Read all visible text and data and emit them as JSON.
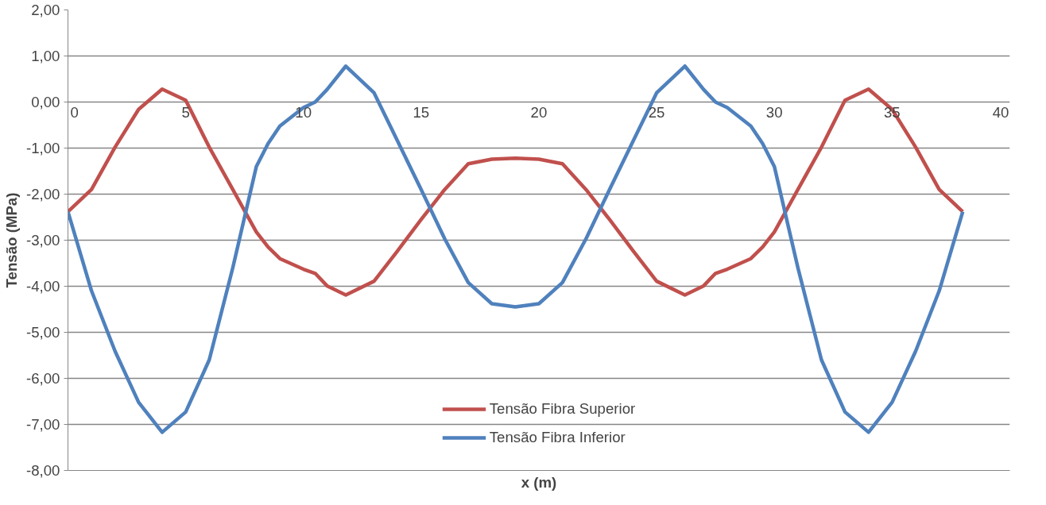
{
  "chart_data": {
    "type": "line",
    "xlabel": "x (m)",
    "ylabel": "Tensão (MPa)",
    "x": [
      0,
      1,
      2,
      3,
      4,
      5,
      6,
      7,
      8,
      8.5,
      9,
      10,
      10.5,
      11,
      11.8,
      13,
      14,
      15,
      16,
      17,
      18,
      19,
      20,
      21,
      22,
      23,
      24,
      25,
      26.2,
      27,
      27.5,
      28,
      29,
      29.5,
      30,
      31,
      32,
      33,
      34,
      35,
      36,
      37,
      38
    ],
    "series": [
      {
        "name": "Tensão Fibra Superior",
        "color": "#c0504d",
        "values": [
          -2.38,
          -1.9,
          -0.98,
          -0.16,
          0.28,
          0.04,
          -0.98,
          -1.9,
          -2.82,
          -3.15,
          -3.4,
          -3.63,
          -3.72,
          -3.99,
          -4.19,
          -3.89,
          -3.23,
          -2.55,
          -1.9,
          -1.34,
          -1.24,
          -1.22,
          -1.24,
          -1.34,
          -1.9,
          -2.55,
          -3.23,
          -3.89,
          -4.19,
          -3.99,
          -3.72,
          -3.63,
          -3.4,
          -3.15,
          -2.82,
          -1.9,
          -0.98,
          0.04,
          0.28,
          -0.16,
          -0.98,
          -1.9,
          -2.38
        ]
      },
      {
        "name": "Tensão Fibra Inferior",
        "color": "#4f81bd",
        "values": [
          -2.38,
          -4.1,
          -5.41,
          -6.52,
          -7.17,
          -6.73,
          -5.6,
          -3.6,
          -1.4,
          -0.9,
          -0.52,
          -0.12,
          0.0,
          0.27,
          0.78,
          0.2,
          -0.85,
          -1.9,
          -2.97,
          -3.92,
          -4.38,
          -4.45,
          -4.38,
          -3.92,
          -2.97,
          -1.9,
          -0.85,
          0.2,
          0.78,
          0.27,
          0.0,
          -0.12,
          -0.52,
          -0.9,
          -1.4,
          -3.6,
          -5.6,
          -6.73,
          -7.17,
          -6.52,
          -5.41,
          -4.1,
          -2.38
        ]
      }
    ],
    "xlim": [
      0,
      40
    ],
    "xticks": [
      0,
      5,
      10,
      15,
      20,
      25,
      30,
      35,
      40
    ],
    "ylim": [
      -8,
      2
    ],
    "yticks": [
      {
        "value": 2,
        "label": "2,00"
      },
      {
        "value": 1,
        "label": "1,00"
      },
      {
        "value": 0,
        "label": "0,00"
      },
      {
        "value": -1,
        "label": "-1,00"
      },
      {
        "value": -2,
        "label": "-2,00"
      },
      {
        "value": -3,
        "label": "-3,00"
      },
      {
        "value": -4,
        "label": "-4,00"
      },
      {
        "value": -5,
        "label": "-5,00"
      },
      {
        "value": -6,
        "label": "-6,00"
      },
      {
        "value": -7,
        "label": "-7,00"
      },
      {
        "value": -8,
        "label": "-8,00"
      }
    ],
    "grid": "y",
    "legend": "bottom",
    "marker": "none",
    "line_style": "solid"
  }
}
